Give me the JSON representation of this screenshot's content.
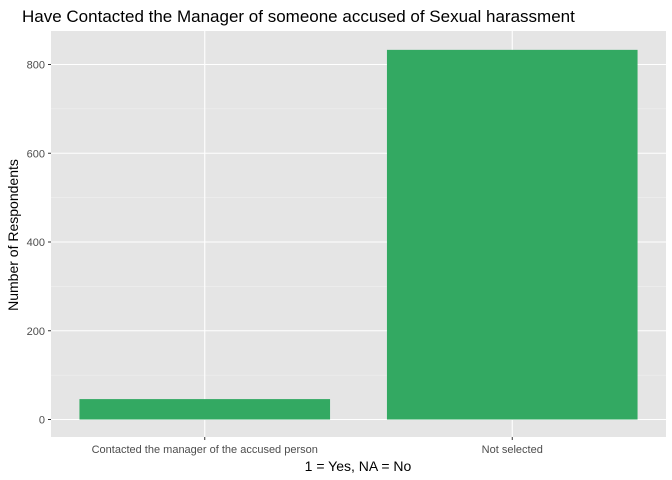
{
  "chart_data": {
    "type": "bar",
    "title": "Have Contacted the Manager of someone accused of Sexual harassment",
    "xlabel": "1 = Yes, NA = No",
    "ylabel": "Number of Respondents",
    "categories": [
      "Contacted the manager of the accused person",
      "Not selected"
    ],
    "values": [
      46,
      833
    ],
    "ylim": [
      0,
      880
    ],
    "yticks": [
      0,
      200,
      400,
      600,
      800
    ],
    "grid": true,
    "legend": "none",
    "bar_color": "#33a962",
    "panel_background": "#e5e5e5"
  }
}
